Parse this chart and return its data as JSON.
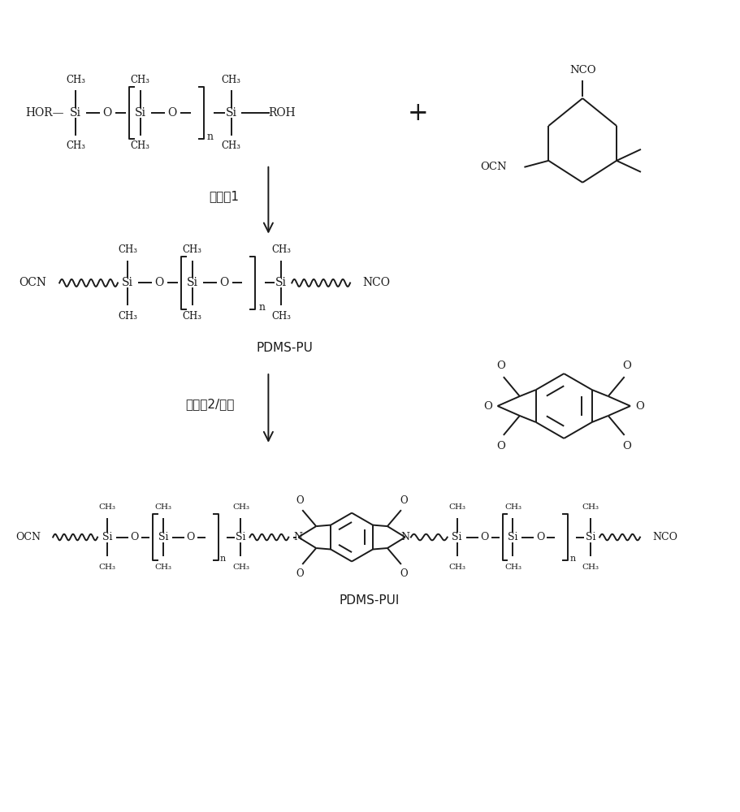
{
  "bg_color": "#ffffff",
  "text_color": "#1a1a1a",
  "line_color": "#1a1a1a",
  "figsize": [
    9.11,
    10.0
  ],
  "dpi": 100,
  "catalyst1": "催化剂1",
  "catalyst2": "催化剂2/溶剂",
  "pdms_pu": "PDMS-PU",
  "pdms_pui": "PDMS-PUI"
}
